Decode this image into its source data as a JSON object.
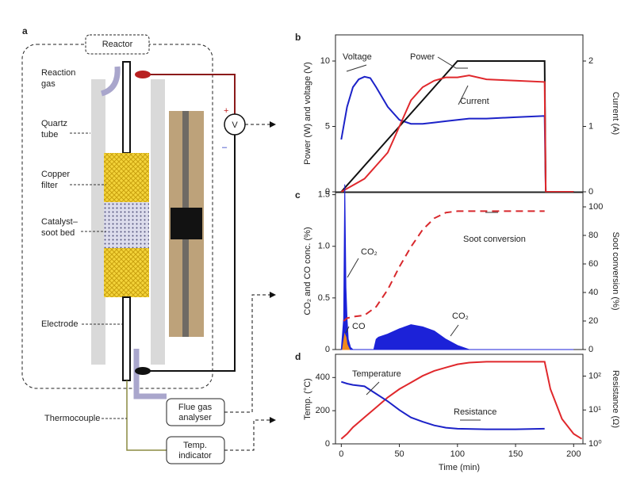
{
  "diagram": {
    "panel": "a",
    "reactor": "Reactor",
    "reaction_gas": [
      "Reaction",
      "gas"
    ],
    "quartz_tube": [
      "Quartz",
      "tube"
    ],
    "copper_filter": [
      "Copper",
      "filter"
    ],
    "catalyst_bed": [
      "Catalyst–",
      "soot bed"
    ],
    "electrode": "Electrode",
    "thermocouple": "Thermocouple",
    "flue_gas": [
      "Flue gas",
      "analyser"
    ],
    "temp_indicator": [
      "Temp.",
      "indicator"
    ],
    "voltmeter": "V",
    "plus": "+",
    "minus": "–"
  },
  "chart_data": [
    {
      "type": "line",
      "panel": "b",
      "ylabel": "Power (W) and voltage (V)",
      "y2label": "Current (A)",
      "xlim": [
        -5,
        208
      ],
      "ylim": [
        0,
        12
      ],
      "yticks": [
        0,
        5,
        10
      ],
      "y2lim": [
        0,
        2.4
      ],
      "y2ticks": [
        0,
        1,
        2
      ],
      "x": [
        0,
        5,
        10,
        15,
        20,
        25,
        30,
        40,
        50,
        60,
        70,
        80,
        90,
        100,
        110,
        125,
        150,
        175,
        176,
        200
      ],
      "series": [
        {
          "name": "Voltage",
          "color": "#1c22c8",
          "values": [
            4,
            6.5,
            8,
            8.6,
            8.8,
            8.7,
            8,
            6.5,
            5.5,
            5.2,
            5.2,
            5.3,
            5.4,
            5.5,
            5.6,
            5.6,
            5.7,
            5.8,
            0,
            0
          ]
        },
        {
          "name": "Power",
          "color": "#111111",
          "values": [
            0,
            0.5,
            1,
            1.5,
            2,
            2.5,
            3,
            4,
            5,
            6,
            7,
            8,
            9,
            10,
            10,
            10,
            10,
            10,
            0,
            0
          ]
        },
        {
          "name": "Current",
          "color": "#e0282c",
          "axis": "y2",
          "values": [
            0,
            0.05,
            0.1,
            0.15,
            0.2,
            0.3,
            0.4,
            0.6,
            1.0,
            1.4,
            1.6,
            1.7,
            1.75,
            1.75,
            1.78,
            1.72,
            1.7,
            1.68,
            0,
            0
          ]
        }
      ],
      "annotations": [
        "Voltage",
        "Power",
        "Current"
      ]
    },
    {
      "type": "line",
      "panel": "c",
      "ylabel": "CO₂ and CO conc. (%)",
      "y2label": "Soot conversion (%)",
      "xlim": [
        -5,
        208
      ],
      "ylim": [
        0,
        1.52
      ],
      "yticks": [
        0,
        0.5,
        {
          "value": 1,
          "label": "1.0"
        },
        1.5
      ],
      "y2lim": [
        0,
        110
      ],
      "y2ticks": [
        0,
        20,
        40,
        60,
        80,
        100
      ],
      "series": [
        {
          "name": "CO₂",
          "color": "#1c22d8",
          "style": "area",
          "x": [
            0,
            2,
            3,
            4,
            5,
            6,
            8,
            10,
            28,
            30,
            32,
            40,
            50,
            60,
            70,
            80,
            90,
            100,
            110,
            200
          ],
          "values": [
            0,
            0.3,
            1.6,
            0.6,
            0.3,
            0.1,
            0.02,
            0,
            0,
            0.1,
            0.12,
            0.15,
            0.2,
            0.24,
            0.22,
            0.18,
            0.1,
            0.04,
            0,
            0
          ]
        },
        {
          "name": "CO",
          "color": "#f08a1c",
          "style": "area",
          "x": [
            1,
            2,
            3,
            4,
            5,
            7
          ],
          "values": [
            0,
            0.08,
            0.15,
            0.12,
            0.05,
            0
          ]
        },
        {
          "name": "Soot conversion",
          "color": "#d8282c",
          "axis": "y2",
          "style": "dashed",
          "x": [
            2,
            5,
            10,
            20,
            30,
            40,
            50,
            60,
            70,
            80,
            90,
            100,
            110,
            125,
            150,
            175
          ],
          "values": [
            20,
            22,
            23,
            24,
            30,
            42,
            58,
            72,
            84,
            92,
            96,
            97,
            97,
            97,
            97,
            97
          ]
        }
      ],
      "annotations": [
        "CO₂",
        "CO",
        "CO₂",
        "Soot conversion"
      ]
    },
    {
      "type": "line",
      "panel": "d",
      "xlabel": "Time (min)",
      "ylabel": "Temp. (°C)",
      "y2label": "Resistance (Ω)",
      "xlim": [
        -5,
        208
      ],
      "xticks": [
        0,
        50,
        100,
        150,
        200
      ],
      "ylim": [
        0,
        540
      ],
      "yticks": [
        0,
        200,
        400
      ],
      "y2log": true,
      "y2lim": [
        1,
        440
      ],
      "y2ticks": [
        {
          "value": 1,
          "label": "10⁰"
        },
        {
          "value": 10,
          "label": "10¹"
        },
        {
          "value": 100,
          "label": "10²"
        }
      ],
      "series": [
        {
          "name": "Temperature",
          "color": "#e0282c",
          "x": [
            0,
            5,
            10,
            20,
            30,
            40,
            50,
            60,
            70,
            80,
            90,
            100,
            110,
            125,
            150,
            175,
            180,
            190,
            200,
            207
          ],
          "values": [
            30,
            60,
            100,
            160,
            220,
            280,
            330,
            370,
            410,
            440,
            460,
            480,
            490,
            495,
            495,
            495,
            330,
            150,
            60,
            30
          ]
        },
        {
          "name": "Resistance",
          "color": "#1c22c8",
          "axis": "y2",
          "x": [
            0,
            5,
            10,
            20,
            30,
            40,
            50,
            60,
            70,
            80,
            90,
            100,
            125,
            150,
            175
          ],
          "values": [
            68,
            60,
            55,
            50,
            30,
            18,
            10,
            6,
            4.5,
            3.5,
            3.0,
            2.8,
            2.7,
            2.7,
            2.8
          ]
        }
      ],
      "annotations": [
        "Temperature",
        "Resistance"
      ]
    }
  ]
}
